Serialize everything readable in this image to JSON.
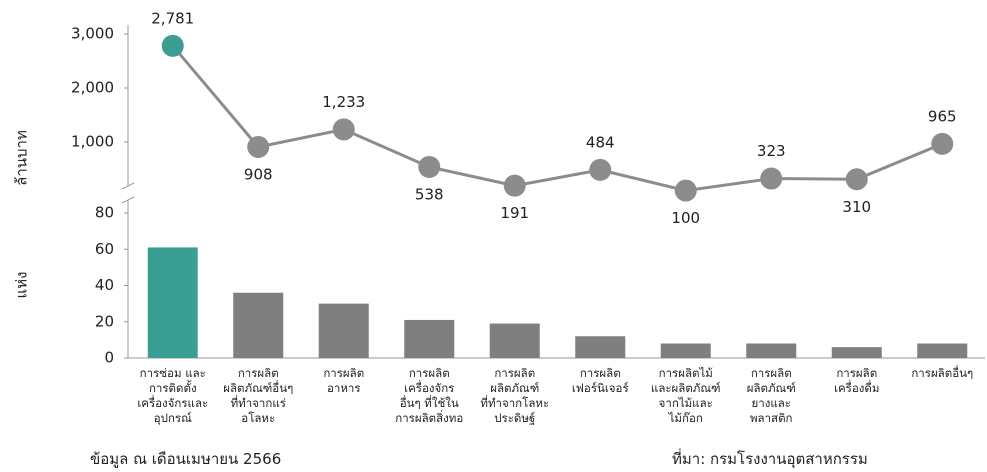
{
  "chart_data": [
    {
      "type": "line",
      "ylabel": "ล้านบาท",
      "values": [
        2781,
        908,
        1233,
        538,
        191,
        484,
        100,
        323,
        310,
        965
      ],
      "value_labels": [
        "2,781",
        "908",
        "1,233",
        "538",
        "191",
        "484",
        "100",
        "323",
        "310",
        "965"
      ],
      "colors": [
        "#3a9e93",
        "#8c8c8c",
        "#8c8c8c",
        "#8c8c8c",
        "#8c8c8c",
        "#8c8c8c",
        "#8c8c8c",
        "#8c8c8c",
        "#8c8c8c",
        "#8c8c8c"
      ],
      "line_color": "#8c8c8c",
      "ylim": [
        0,
        3000
      ],
      "yticks": [
        {
          "value": 1000,
          "label": "1,000"
        },
        {
          "value": 2000,
          "label": "2,000"
        },
        {
          "value": 3000,
          "label": "3,000"
        }
      ]
    },
    {
      "type": "bar",
      "ylabel": "แห่ง",
      "categories": [
        "การซ่อม และ\nการติดตั้ง\nเครื่องจักรและ\nอุปกรณ์",
        "การผลิต\nผลิตภัณฑ์อื่นๆ\nที่ทำจากแร่\nอโลหะ",
        "การผลิต\nอาหาร",
        "การผลิต\nเครื่องจักร\nอื่นๆ ที่ใช้ใน\nการผลิตสิ่งทอ",
        "การผลิต\nผลิตภัณฑ์\nที่ทำจากโลหะ\nประดิษฐ์",
        "การผลิต\nเฟอร์นิเจอร์",
        "การผลิตไม้\nและผลิตภัณฑ์\nจากไม้และ\nไม้ก๊อก",
        "การผลิต\nผลิตภัณฑ์\nยางและ\nพลาสติก",
        "การผลิต\nเครื่องดื่ม",
        "การผลิตอื่นๆ"
      ],
      "values": [
        61,
        36,
        30,
        21,
        19,
        12,
        8,
        8,
        6,
        8
      ],
      "colors": [
        "#3a9e93",
        "#7f7f7f",
        "#7f7f7f",
        "#7f7f7f",
        "#7f7f7f",
        "#7f7f7f",
        "#7f7f7f",
        "#7f7f7f",
        "#7f7f7f",
        "#7f7f7f"
      ],
      "ylim": [
        0,
        80
      ],
      "yticks": [
        0,
        20,
        40,
        60,
        80
      ]
    }
  ],
  "notes": {
    "left": "ข้อมูล ณ เดือนเมษายน 2566",
    "right": "ที่มา: กรมโรงงานอุตสาหกรรม"
  }
}
